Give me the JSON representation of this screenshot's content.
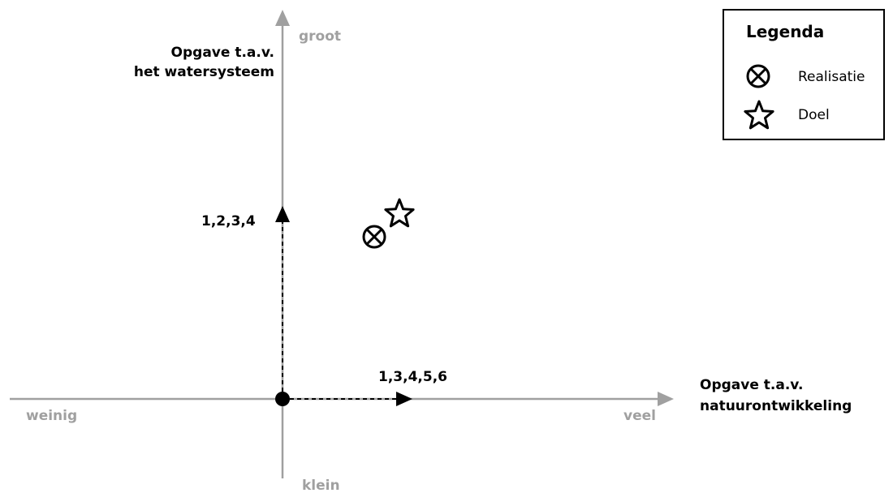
{
  "axes": {
    "y_title_line1": "Opgave t.a.v.",
    "y_title_line2": "het watersysteem",
    "y_top": "groot",
    "y_bottom": "klein",
    "x_title_line1": "Opgave t.a.v.",
    "x_title_line2": "natuurontwikkeling",
    "x_left": "weinig",
    "x_right": "veel",
    "axis_color": "#a0a0a0"
  },
  "vectors": {
    "vertical_label": "1,2,3,4",
    "horizontal_label": "1,3,4,5,6"
  },
  "legend": {
    "title": "Legenda",
    "items": [
      {
        "icon": "circle-x-icon",
        "label": "Realisatie"
      },
      {
        "icon": "star-icon",
        "label": "Doel"
      }
    ]
  }
}
